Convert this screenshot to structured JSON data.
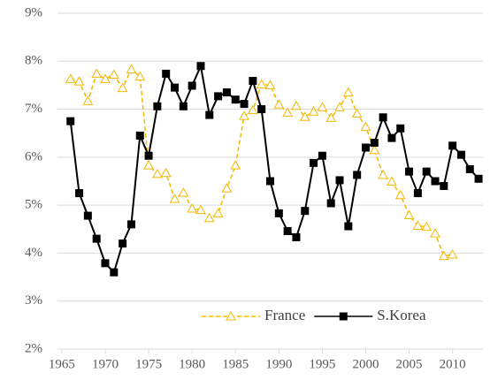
{
  "chart_data": {
    "type": "line",
    "x": [
      1966,
      1967,
      1968,
      1969,
      1970,
      1971,
      1972,
      1973,
      1974,
      1975,
      1976,
      1977,
      1978,
      1979,
      1980,
      1981,
      1982,
      1983,
      1984,
      1985,
      1986,
      1987,
      1988,
      1989,
      1990,
      1991,
      1992,
      1993,
      1994,
      1995,
      1996,
      1997,
      1998,
      1999,
      2000,
      2001,
      2002,
      2003,
      2004,
      2005,
      2006,
      2007,
      2008,
      2009,
      2010,
      2011,
      2012,
      2013
    ],
    "series": [
      {
        "name": "France",
        "color": "#f5b800",
        "dash": "dashed",
        "marker": "triangle",
        "values": [
          7.63,
          7.58,
          7.17,
          7.74,
          7.63,
          7.72,
          7.44,
          7.83,
          7.68,
          5.83,
          5.65,
          5.67,
          5.13,
          5.26,
          4.93,
          4.9,
          4.73,
          4.83,
          5.35,
          5.83,
          6.86,
          6.98,
          7.52,
          7.5,
          7.1,
          6.93,
          7.07,
          6.84,
          6.95,
          7.04,
          6.82,
          7.04,
          7.35,
          6.91,
          6.63,
          6.15,
          5.63,
          5.49,
          5.21,
          4.79,
          4.57,
          4.55,
          4.41,
          3.94,
          3.97,
          null,
          null,
          null
        ]
      },
      {
        "name": "S.Korea",
        "color": "#000000",
        "dash": "solid",
        "marker": "square",
        "values": [
          6.75,
          5.25,
          4.78,
          4.3,
          3.79,
          3.6,
          4.2,
          4.6,
          6.45,
          6.03,
          7.06,
          7.74,
          7.45,
          7.06,
          7.49,
          7.9,
          6.88,
          7.27,
          7.35,
          7.2,
          7.11,
          7.59,
          7.0,
          5.5,
          4.83,
          4.46,
          4.33,
          4.88,
          5.88,
          6.03,
          5.04,
          5.52,
          4.56,
          5.63,
          6.2,
          6.3,
          6.83,
          6.4,
          6.6,
          5.7,
          5.25,
          5.7,
          5.5,
          5.4,
          6.24,
          6.05,
          5.75,
          5.55
        ]
      }
    ],
    "xlim": [
      1964.5,
      2013.5
    ],
    "xticks": [
      1965,
      1970,
      1975,
      1980,
      1985,
      1990,
      1995,
      2000,
      2005,
      2010
    ],
    "ylim": [
      2,
      9
    ],
    "yticks": [
      {
        "value": 2,
        "label": "2%"
      },
      {
        "value": 3,
        "label": "3%"
      },
      {
        "value": 4,
        "label": "4%"
      },
      {
        "value": 5,
        "label": "5%"
      },
      {
        "value": 6,
        "label": "6%"
      },
      {
        "value": 7,
        "label": "7%"
      },
      {
        "value": 8,
        "label": "8%"
      },
      {
        "value": 9,
        "label": "9%"
      }
    ],
    "grid": true,
    "legend": "lower right"
  }
}
